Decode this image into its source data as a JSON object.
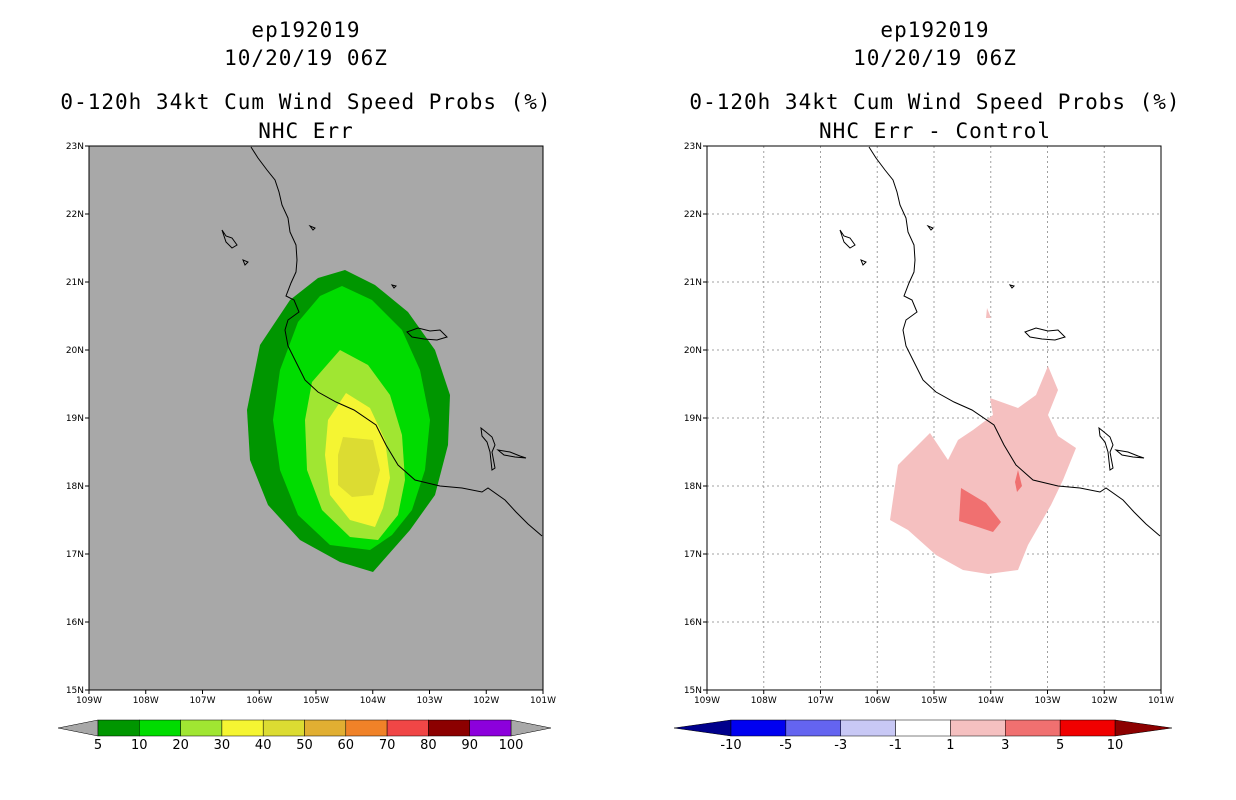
{
  "left_panel": {
    "title_line1": "ep192019",
    "title_line2": "10/20/19 06Z",
    "title_line3": "0-120h 34kt Cum Wind Speed Probs (%)",
    "title_line4": "NHC Err",
    "background_color": "#a8a8a8",
    "lat_labels": [
      "15N",
      "16N",
      "17N",
      "18N",
      "19N",
      "20N",
      "21N",
      "22N",
      "23N"
    ],
    "lon_labels": [
      "109W",
      "108W",
      "107W",
      "106W",
      "105W",
      "104W",
      "103W",
      "102W",
      "101W"
    ],
    "colorbar": {
      "labels": [
        "5",
        "10",
        "20",
        "30",
        "40",
        "50",
        "60",
        "70",
        "80",
        "90",
        "100"
      ],
      "colors": [
        "#009600",
        "#00dc00",
        "#a0e632",
        "#f5f532",
        "#dcdc32",
        "#e1af32",
        "#f08228",
        "#f04646",
        "#8c0000",
        "#8c00dc"
      ],
      "end_color": "#a8a8a8"
    }
  },
  "right_panel": {
    "title_line1": "ep192019",
    "title_line2": "10/20/19 06Z",
    "title_line3": "0-120h 34kt Cum Wind Speed Probs (%)",
    "title_line4": "NHC Err - Control",
    "lat_labels": [
      "15N",
      "16N",
      "17N",
      "18N",
      "19N",
      "20N",
      "21N",
      "22N",
      "23N"
    ],
    "lon_labels": [
      "109W",
      "108W",
      "107W",
      "106W",
      "105W",
      "104W",
      "103W",
      "102W",
      "101W"
    ],
    "colorbar": {
      "labels": [
        "-10",
        "-5",
        "-3",
        "-1",
        "1",
        "3",
        "5",
        "10"
      ],
      "colors": [
        "#0000f0",
        "#6464f0",
        "#c8c8f5",
        "#ffffff",
        "#f5c0c0",
        "#f07070",
        "#f00000"
      ],
      "left_end_color": "#00008c",
      "right_end_color": "#8c0000"
    }
  },
  "map_extent": {
    "lon_min": -109,
    "lon_max": -101,
    "lat_min": 15,
    "lat_max": 23
  }
}
